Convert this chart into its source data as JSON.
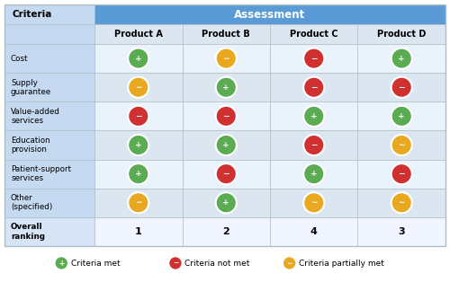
{
  "criteria": [
    "Cost",
    "Supply\nguarantee",
    "Value-added\nservices",
    "Education\nprovision",
    "Patient-support\nservices",
    "Other\n(specified)",
    "Overall\nranking"
  ],
  "products": [
    "Product A",
    "Product B",
    "Product C",
    "Product D"
  ],
  "assessment_header": "Assessment",
  "criteria_header": "Criteria",
  "symbols": [
    [
      "green",
      "yellow",
      "red",
      "green"
    ],
    [
      "yellow",
      "green",
      "red",
      "red"
    ],
    [
      "red",
      "red",
      "green",
      "green"
    ],
    [
      "green",
      "green",
      "red",
      "yellow"
    ],
    [
      "green",
      "red",
      "green",
      "red"
    ],
    [
      "yellow",
      "green",
      "yellow",
      "yellow"
    ],
    [
      "1",
      "2",
      "4",
      "3"
    ]
  ],
  "colors": {
    "green": "#5aab52",
    "red": "#d03030",
    "yellow": "#e8a820",
    "header_blue": "#5b9bd5",
    "header_text": "#ffffff",
    "row_alt": "#dce6f1",
    "row_norm": "#eaf2fb",
    "border": "#b0bec5",
    "criteria_bg": "#c5d9f1",
    "overall_bg": "#f0f5ff",
    "bg_white": "#ffffff"
  },
  "legend": [
    {
      "color": "green",
      "label": "Criteria met",
      "symbol": "+"
    },
    {
      "color": "red",
      "label": "Criteria not met",
      "symbol": "-"
    },
    {
      "color": "yellow",
      "label": "Criteria partially met",
      "symbol": "~"
    }
  ],
  "figsize": [
    5.0,
    3.14
  ],
  "dpi": 100
}
